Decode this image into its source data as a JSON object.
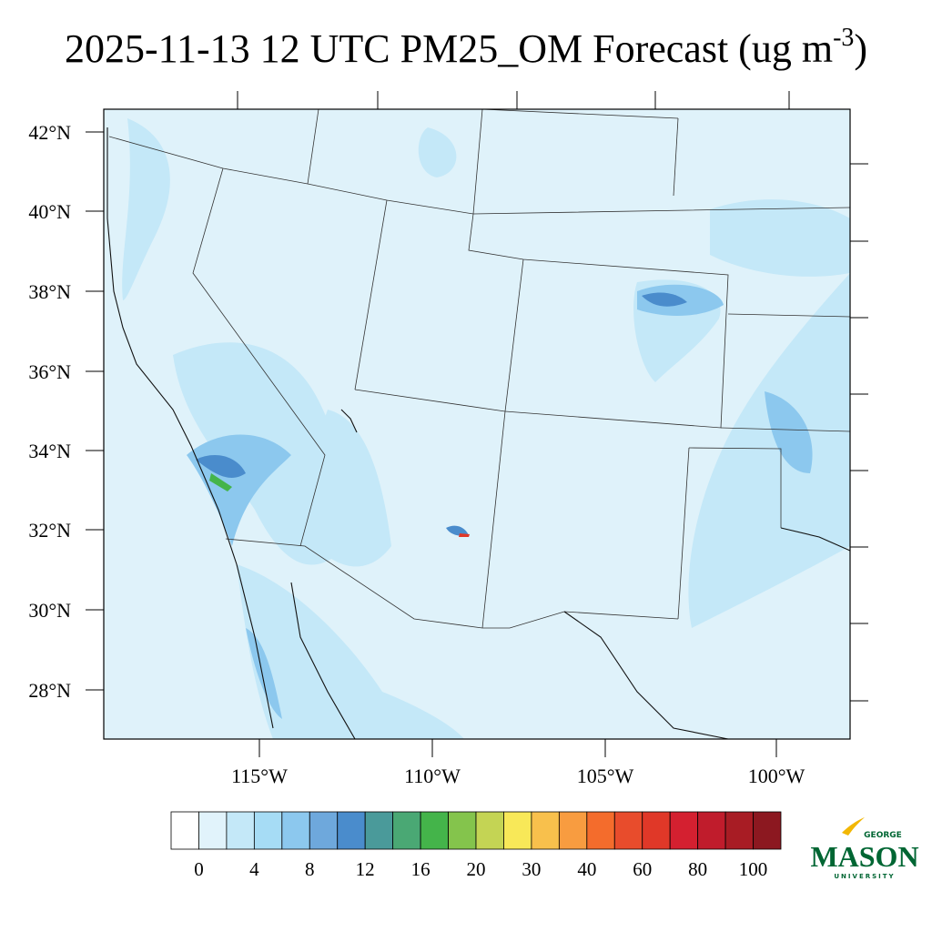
{
  "header": {
    "title": "2025-11-13 12 UTC PM25_OM Forecast (ug m",
    "title_superscript": "-3",
    "title_end": ")"
  },
  "map": {
    "lat_labels": [
      "42°N",
      "40°N",
      "38°N",
      "36°N",
      "34°N",
      "32°N",
      "30°N",
      "28°N"
    ],
    "lon_labels": [
      "115°W",
      "110°W",
      "105°W",
      "100°W"
    ]
  },
  "colorbar": {
    "colors": [
      "#ffffff",
      "#e1f3fb",
      "#c4e8f8",
      "#a6dcf5",
      "#8cc8ee",
      "#6ea8dc",
      "#4a8ccc",
      "#4a9a9a",
      "#4aa874",
      "#44b44a",
      "#84c44c",
      "#c4d454",
      "#f8e858",
      "#f8c04c",
      "#f89c40",
      "#f46c2c",
      "#e84c2c",
      "#e03828",
      "#d42030",
      "#c01c2c",
      "#a81c24",
      "#8c1820"
    ],
    "labels": [
      0,
      4,
      8,
      12,
      16,
      20,
      30,
      40,
      60,
      80,
      100
    ]
  },
  "logo": {
    "top": "GEORGE",
    "name": "MASON",
    "bottom": "UNIVERSITY"
  }
}
